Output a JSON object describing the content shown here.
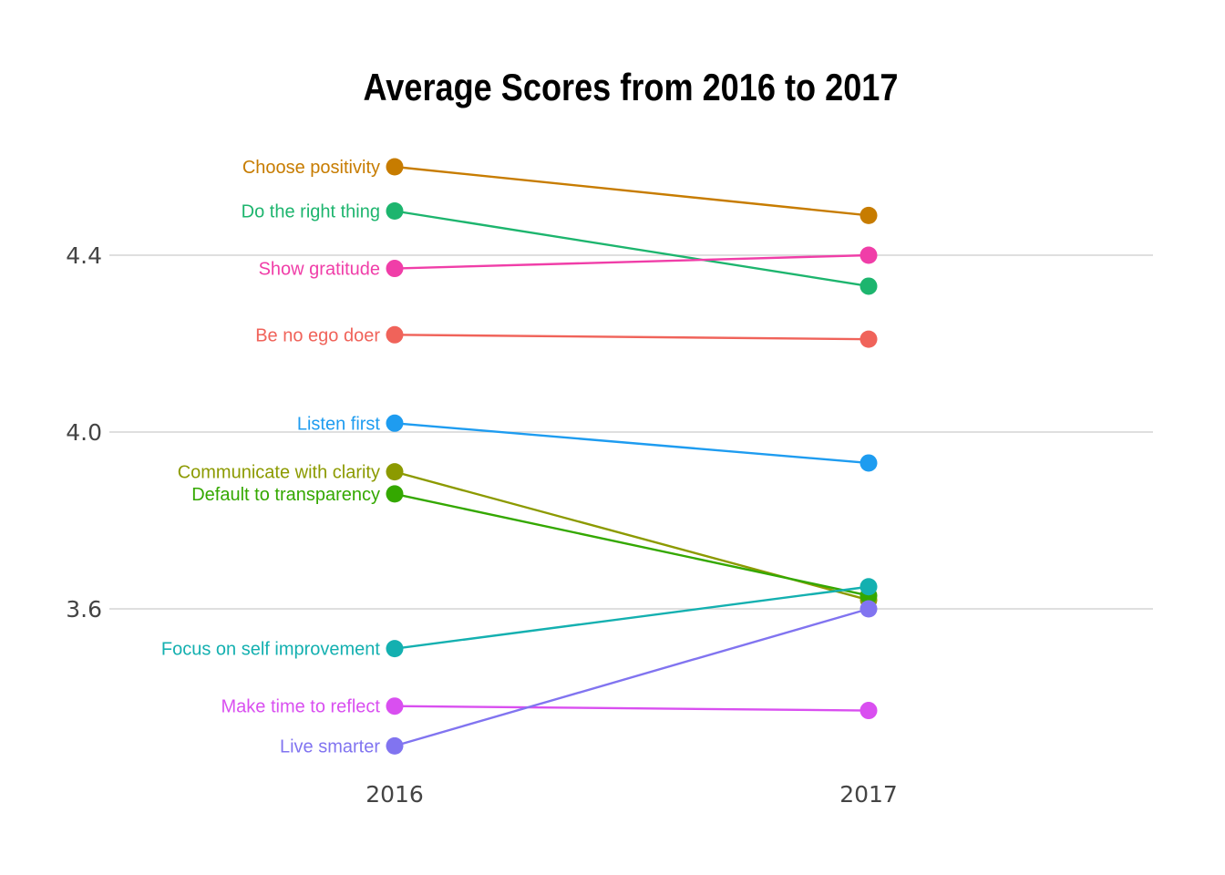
{
  "chart_data": {
    "type": "line",
    "title": "Average Scores from 2016 to 2017",
    "xlabel": "",
    "ylabel": "",
    "x": [
      "2016",
      "2017"
    ],
    "ylim": [
      3.26,
      4.8
    ],
    "yticks": [
      3.6,
      4.0,
      4.4
    ],
    "ytick_labels": [
      "3.6",
      "4.0",
      "4.4"
    ],
    "grid": true,
    "legend": "none",
    "series": [
      {
        "name": "Choose positivity",
        "values": [
          4.6,
          4.49
        ],
        "color": "#C77C00"
      },
      {
        "name": "Do the right thing",
        "values": [
          4.5,
          4.33
        ],
        "color": "#1DB56E"
      },
      {
        "name": "Show gratitude",
        "values": [
          4.37,
          4.4
        ],
        "color": "#F03EA8"
      },
      {
        "name": "Be no ego doer",
        "values": [
          4.22,
          4.21
        ],
        "color": "#F0635A"
      },
      {
        "name": "Listen first",
        "values": [
          4.02,
          3.93
        ],
        "color": "#1E9CF0"
      },
      {
        "name": "Communicate with clarity",
        "values": [
          3.91,
          3.62
        ],
        "color": "#8C9A00"
      },
      {
        "name": "Default to transparency",
        "values": [
          3.86,
          3.63
        ],
        "color": "#34A800"
      },
      {
        "name": "Focus on self improvement",
        "values": [
          3.51,
          3.65
        ],
        "color": "#14B0B0"
      },
      {
        "name": "Make time to reflect",
        "values": [
          3.38,
          3.37
        ],
        "color": "#D94FF0"
      },
      {
        "name": "Live smarter",
        "values": [
          3.29,
          3.6
        ],
        "color": "#8174F0"
      }
    ]
  }
}
